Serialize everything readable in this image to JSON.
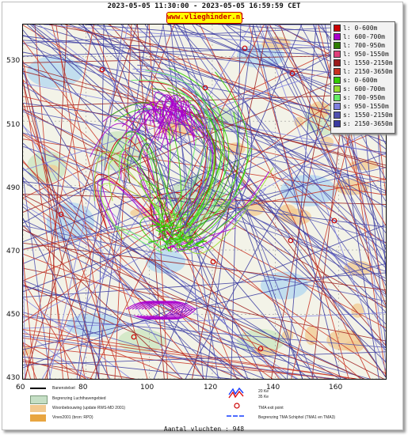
{
  "header": {
    "date_range": "2023-05-05 11:30:00 - 2023-05-05 16:59:59 CET",
    "site": "www.vlieghinder.nl"
  },
  "axes": {
    "x_ticks": [
      "60",
      "80",
      "100",
      "120",
      "140",
      "160"
    ],
    "y_ticks": [
      "530",
      "510",
      "490",
      "470",
      "450",
      "430"
    ]
  },
  "legend": [
    {
      "label": "l:  0-600m",
      "color": "#cc0000"
    },
    {
      "label": "l:  600-700m",
      "color": "#aa00cc"
    },
    {
      "label": "l:  700-950m",
      "color": "#2e7d00"
    },
    {
      "label": "l:  950-1550m",
      "color": "#e0407a"
    },
    {
      "label": "l:  1550-2150m",
      "color": "#9b1b1b"
    },
    {
      "label": "l:  2150-3650m",
      "color": "#c83020"
    },
    {
      "label": "s:  0-600m",
      "color": "#33cc00"
    },
    {
      "label": "s:  600-700m",
      "color": "#99dd33"
    },
    {
      "label": "s:  700-950m",
      "color": "#66ee66"
    },
    {
      "label": "s:  950-1550m",
      "color": "#7f7fe0"
    },
    {
      "label": "s:  1550-2150m",
      "color": "#5050b0"
    },
    {
      "label": "s:  2150-3650m",
      "color": "#3a3aa0"
    }
  ],
  "map_keys": {
    "runways": "Banenstelsel",
    "airport_boundary": "Begrenzing Luchthavengebied",
    "housing": "Woonbebouwing (update RWS-MD 2001)",
    "vinex": "Vinex2001 (bron: RPD)",
    "noise_20ke": "20 Ke",
    "noise_35ke": "35 Ke",
    "tma_exit": "TMA exit point",
    "tma_boundary": "Begrenzing TMA Schiphol  (TMA1 en TMA3)"
  },
  "footer": {
    "flight_count": "Aantal vluchten : 948"
  },
  "colors": {
    "water": "#b9d9ee",
    "land": "#cfe6c3",
    "housing": "#f2c98f",
    "airport": "#c5dfc5"
  }
}
